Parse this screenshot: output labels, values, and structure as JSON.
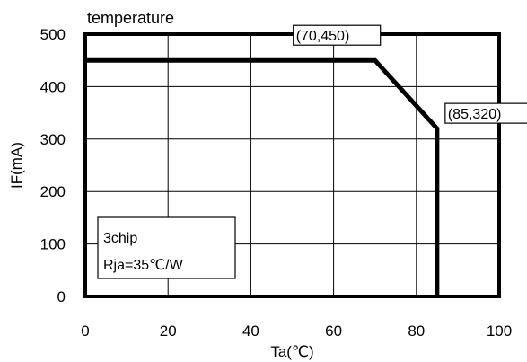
{
  "chart_data": {
    "type": "line",
    "title": "temperature",
    "xlabel": "Ta(℃)",
    "ylabel": "IF(mA)",
    "xlim": [
      0,
      100
    ],
    "ylim": [
      0,
      500
    ],
    "xticks": [
      0,
      20,
      40,
      60,
      80,
      100
    ],
    "yticks": [
      0,
      100,
      200,
      300,
      400,
      500
    ],
    "grid": true,
    "series": [
      {
        "x": [
          0,
          70,
          85,
          85
        ],
        "y": [
          450,
          450,
          320,
          0
        ]
      }
    ],
    "annotations": [
      {
        "text": "(70,450)",
        "x": 70,
        "y": 450
      },
      {
        "text": "(85,320)",
        "x": 85,
        "y": 320
      }
    ],
    "note": [
      "3chip",
      "Rja=35℃/W"
    ]
  }
}
